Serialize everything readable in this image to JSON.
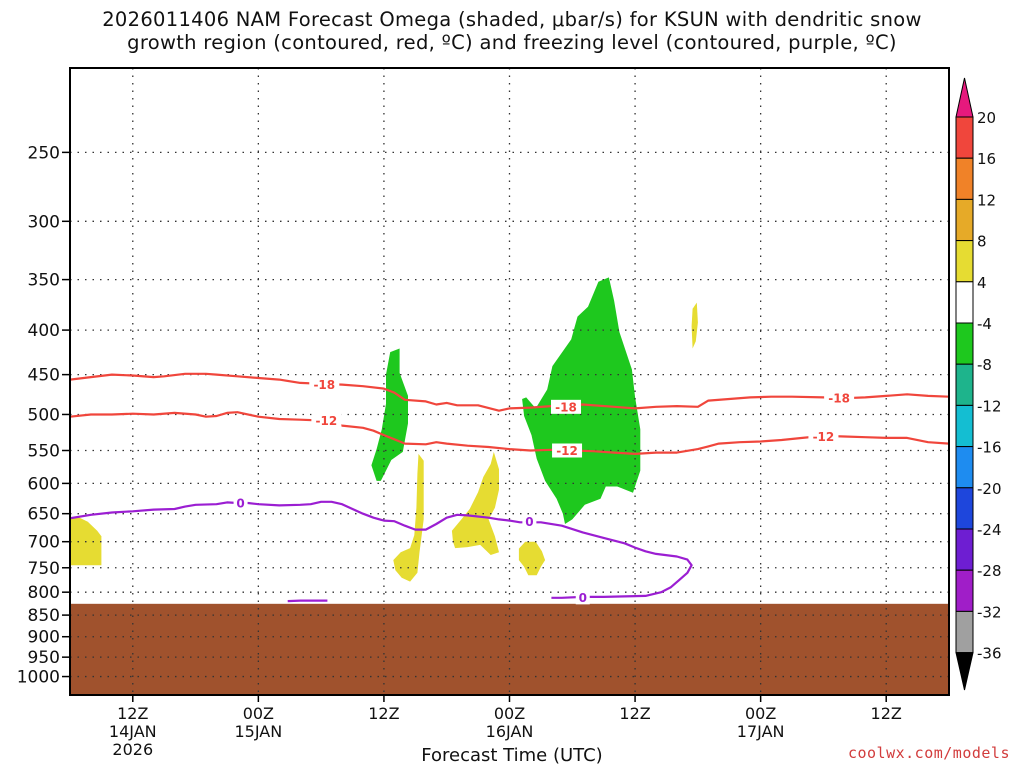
{
  "title": {
    "line1": "2026011406 NAM Forecast Omega (shaded, μbar/s) for KSUN with dendritic snow",
    "line2": "growth region (contoured, red, ºC) and freezing level (contoured, purple, ºC)"
  },
  "credit": "coolwx.com/models",
  "chart_data": {
    "type": "heatmap",
    "title": "2026011406 NAM Forecast Omega (shaded, μbar/s) for KSUN with dendritic snow growth region (contoured, red, ºC) and freezing level (contoured, purple, ºC)",
    "xlabel": "Forecast Time (UTC)",
    "ylabel": "",
    "x_range_hours": [
      6,
      90
    ],
    "y_range_mb": [
      200,
      1050
    ],
    "y_scale": "log",
    "y_ticks": [
      "250",
      "300",
      "350",
      "400",
      "450",
      "500",
      "550",
      "600",
      "650",
      "700",
      "750",
      "800",
      "850",
      "900",
      "950",
      "1000"
    ],
    "x_ticks": [
      {
        "hour": 12,
        "line1": "12Z",
        "line2": "14JAN",
        "line3": "2026"
      },
      {
        "hour": 24,
        "line1": "00Z",
        "line2": "15JAN",
        "line3": ""
      },
      {
        "hour": 36,
        "line1": "12Z",
        "line2": "",
        "line3": ""
      },
      {
        "hour": 48,
        "line1": "00Z",
        "line2": "16JAN",
        "line3": ""
      },
      {
        "hour": 60,
        "line1": "12Z",
        "line2": "",
        "line3": ""
      },
      {
        "hour": 72,
        "line1": "00Z",
        "line2": "17JAN",
        "line3": ""
      },
      {
        "hour": 84,
        "line1": "12Z",
        "line2": "",
        "line3": ""
      }
    ],
    "grid": true,
    "ground_level_mb": 825,
    "colorbar": {
      "labels": [
        "20",
        "16",
        "12",
        "8",
        "4",
        "-4",
        "-8",
        "-12",
        "-16",
        "-20",
        "-24",
        "-28",
        "-32",
        "-36"
      ],
      "colors": [
        "#f0463c",
        "#f08228",
        "#e6aa28",
        "#e6dc32",
        "#ffffff",
        "#1ec81e",
        "#1eb48c",
        "#14bed2",
        "#1e8cf0",
        "#1e46dc",
        "#6e1ed2",
        "#a01ec8",
        "#a0a0a0"
      ],
      "top_arrow_color": "#e6197d",
      "bottom_arrow_color": "#000000"
    },
    "omega_regions": [
      {
        "level": "-4 to -8",
        "color": "#1ec81e",
        "points": [
          [
            35.3,
            596
          ],
          [
            34.8,
            572
          ],
          [
            35.3,
            548
          ],
          [
            35.8,
            520
          ],
          [
            36.2,
            486
          ],
          [
            36.2,
            450
          ],
          [
            36.6,
            424
          ],
          [
            37.5,
            420
          ],
          [
            37.5,
            448
          ],
          [
            38.3,
            476
          ],
          [
            38.3,
            512
          ],
          [
            37.8,
            552
          ],
          [
            36.7,
            564
          ],
          [
            36.2,
            580
          ],
          [
            35.7,
            596
          ]
        ]
      },
      {
        "level": "-4 to -8",
        "color": "#1ec81e",
        "points": [
          [
            49.2,
            480
          ],
          [
            49.6,
            478
          ],
          [
            50.5,
            492
          ],
          [
            51.6,
            468
          ],
          [
            52.1,
            440
          ],
          [
            53.9,
            410
          ],
          [
            54.5,
            386
          ],
          [
            55.5,
            376
          ],
          [
            56.5,
            352
          ],
          [
            57.5,
            348
          ],
          [
            58.0,
            370
          ],
          [
            58.5,
            402
          ],
          [
            59.7,
            444
          ],
          [
            60.0,
            478
          ],
          [
            60.5,
            520
          ],
          [
            60.5,
            580
          ],
          [
            59.8,
            615
          ],
          [
            58.3,
            605
          ],
          [
            57.2,
            605
          ],
          [
            56.7,
            625
          ],
          [
            55.2,
            635
          ],
          [
            54.0,
            660
          ],
          [
            53.3,
            668
          ],
          [
            53.1,
            650
          ],
          [
            52.5,
            625
          ],
          [
            51.4,
            596
          ],
          [
            50.6,
            562
          ],
          [
            50.1,
            528
          ],
          [
            49.4,
            502
          ]
        ]
      },
      {
        "level": "4 to 8",
        "color": "#e6dc32",
        "points": [
          [
            6,
            658
          ],
          [
            6.8,
            656
          ],
          [
            7.7,
            664
          ],
          [
            8.6,
            680
          ],
          [
            9,
            690
          ],
          [
            9,
            745
          ],
          [
            6,
            745
          ]
        ]
      },
      {
        "level": "4 to 8",
        "color": "#e6dc32",
        "points": [
          [
            36.9,
            735
          ],
          [
            37.6,
            720
          ],
          [
            38.5,
            712
          ],
          [
            38.9,
            688
          ],
          [
            39.1,
            640
          ],
          [
            39.2,
            585
          ],
          [
            39.3,
            555
          ],
          [
            39.8,
            565
          ],
          [
            39.8,
            600
          ],
          [
            39.8,
            660
          ],
          [
            39.4,
            720
          ],
          [
            39.2,
            760
          ],
          [
            38.5,
            778
          ],
          [
            37.7,
            770
          ],
          [
            37.1,
            755
          ]
        ]
      },
      {
        "level": "4 to 8",
        "color": "#e6dc32",
        "points": [
          [
            42.6,
            700
          ],
          [
            42.5,
            680
          ],
          [
            43.4,
            660
          ],
          [
            44.2,
            642
          ],
          [
            45.0,
            614
          ],
          [
            45.5,
            590
          ],
          [
            46.2,
            570
          ],
          [
            46.5,
            552
          ],
          [
            47.0,
            578
          ],
          [
            47.0,
            610
          ],
          [
            46.6,
            640
          ],
          [
            46.0,
            660
          ],
          [
            46.6,
            690
          ],
          [
            47.0,
            720
          ],
          [
            46.2,
            725
          ],
          [
            45.2,
            706
          ],
          [
            44.0,
            710
          ],
          [
            42.8,
            712
          ]
        ]
      },
      {
        "level": "4 to 8",
        "color": "#e6dc32",
        "points": [
          [
            48.9,
            735
          ],
          [
            48.9,
            713
          ],
          [
            49.5,
            700
          ],
          [
            50.5,
            700
          ],
          [
            51.1,
            718
          ],
          [
            51.4,
            735
          ],
          [
            51.0,
            748
          ],
          [
            50.6,
            765
          ],
          [
            49.8,
            765
          ],
          [
            49.4,
            748
          ]
        ]
      },
      {
        "level": "4 to 8",
        "color": "#e6dc32",
        "points": [
          [
            65.5,
            420
          ],
          [
            65.4,
            396
          ],
          [
            65.5,
            378
          ],
          [
            65.9,
            372
          ],
          [
            66.0,
            392
          ],
          [
            65.8,
            412
          ]
        ]
      }
    ],
    "contours": [
      {
        "label": "-18",
        "color": "#f0463c",
        "points": [
          [
            6,
            456
          ],
          [
            8,
            453
          ],
          [
            10,
            450
          ],
          [
            12,
            451
          ],
          [
            14,
            453
          ],
          [
            15,
            452
          ],
          [
            17,
            449
          ],
          [
            19,
            449
          ],
          [
            20,
            450
          ],
          [
            22,
            452
          ],
          [
            24,
            454
          ],
          [
            26,
            456
          ],
          [
            28,
            460
          ],
          [
            30,
            461
          ],
          [
            32,
            462
          ],
          [
            34,
            464
          ],
          [
            36,
            467
          ],
          [
            37,
            472
          ],
          [
            38,
            481
          ],
          [
            40,
            483
          ],
          [
            41,
            487
          ],
          [
            42,
            485
          ],
          [
            43,
            488
          ],
          [
            45,
            488
          ],
          [
            47,
            495
          ],
          [
            48,
            492
          ],
          [
            50,
            491
          ],
          [
            52,
            489
          ],
          [
            55,
            487
          ],
          [
            58,
            490
          ],
          [
            60,
            492
          ],
          [
            62,
            490
          ],
          [
            64,
            489
          ],
          [
            66,
            490
          ],
          [
            67,
            482
          ],
          [
            69,
            480
          ],
          [
            71,
            478
          ],
          [
            73,
            477
          ],
          [
            75,
            477
          ],
          [
            78,
            478
          ],
          [
            80,
            479
          ],
          [
            82,
            478
          ],
          [
            84,
            476
          ],
          [
            86,
            474
          ],
          [
            88,
            476
          ],
          [
            90,
            477
          ]
        ],
        "label_positions": [
          [
            30.3,
            462
          ],
          [
            53.4,
            490
          ],
          [
            79.5,
            479
          ]
        ]
      },
      {
        "label": "-12",
        "color": "#f0463c",
        "points": [
          [
            6,
            503
          ],
          [
            8,
            500
          ],
          [
            10,
            500
          ],
          [
            12,
            499
          ],
          [
            14,
            500
          ],
          [
            16,
            498
          ],
          [
            18,
            500
          ],
          [
            19,
            503
          ],
          [
            20,
            502
          ],
          [
            21,
            498
          ],
          [
            22,
            497
          ],
          [
            24,
            503
          ],
          [
            26,
            506
          ],
          [
            28,
            507
          ],
          [
            30,
            508
          ],
          [
            32,
            515
          ],
          [
            34,
            518
          ],
          [
            35,
            522
          ],
          [
            36,
            528
          ],
          [
            37,
            534
          ],
          [
            38,
            540
          ],
          [
            40,
            541
          ],
          [
            41,
            538
          ],
          [
            42,
            540
          ],
          [
            44,
            543
          ],
          [
            46,
            545
          ],
          [
            48,
            548
          ],
          [
            50,
            550
          ],
          [
            52,
            549
          ],
          [
            54,
            550
          ],
          [
            56,
            551
          ],
          [
            58,
            553
          ],
          [
            60,
            555
          ],
          [
            62,
            553
          ],
          [
            64,
            553
          ],
          [
            66,
            548
          ],
          [
            67,
            544
          ],
          [
            68,
            540
          ],
          [
            70,
            538
          ],
          [
            72,
            537
          ],
          [
            74,
            535
          ],
          [
            76,
            532
          ],
          [
            78,
            529
          ],
          [
            80,
            530
          ],
          [
            82,
            531
          ],
          [
            84,
            532
          ],
          [
            86,
            532
          ],
          [
            88,
            538
          ],
          [
            90,
            540
          ]
        ],
        "label_positions": [
          [
            30.5,
            508
          ],
          [
            53.5,
            550
          ],
          [
            78.0,
            530
          ]
        ]
      },
      {
        "label": "0",
        "color": "#9b1ed2",
        "points": [
          [
            6,
            658
          ],
          [
            8,
            652
          ],
          [
            10,
            648
          ],
          [
            12,
            646
          ],
          [
            14,
            643
          ],
          [
            16,
            642
          ],
          [
            17,
            638
          ],
          [
            18,
            635
          ],
          [
            20,
            634
          ],
          [
            21,
            631
          ],
          [
            22,
            632
          ],
          [
            23,
            632
          ],
          [
            24,
            634
          ],
          [
            26,
            636
          ],
          [
            28,
            635
          ],
          [
            29,
            634
          ],
          [
            30,
            630
          ],
          [
            31,
            630
          ],
          [
            32,
            634
          ],
          [
            33,
            642
          ],
          [
            34,
            650
          ],
          [
            35,
            657
          ],
          [
            36,
            662
          ],
          [
            37,
            663
          ],
          [
            38,
            671
          ],
          [
            39,
            678
          ],
          [
            40,
            678
          ],
          [
            41,
            668
          ],
          [
            42,
            657
          ],
          [
            43,
            652
          ],
          [
            44,
            653
          ],
          [
            46,
            657
          ],
          [
            47,
            660
          ],
          [
            48,
            662
          ],
          [
            49,
            665
          ],
          [
            51,
            665
          ],
          [
            53,
            671
          ],
          [
            55,
            683
          ],
          [
            57,
            693
          ],
          [
            59,
            703
          ],
          [
            60,
            711
          ],
          [
            61,
            718
          ],
          [
            62,
            723
          ],
          [
            64,
            728
          ],
          [
            65,
            734
          ],
          [
            65.4,
            745
          ],
          [
            65.0,
            760
          ],
          [
            64.2,
            775
          ],
          [
            63.4,
            790
          ],
          [
            62.5,
            800
          ],
          [
            61.0,
            808
          ],
          [
            59.0,
            809
          ],
          [
            57.0,
            810
          ],
          [
            55.0,
            810
          ],
          [
            53.0,
            812
          ],
          [
            52.0,
            812
          ]
        ],
        "label_positions": [
          [
            22.3,
            632
          ],
          [
            49.9,
            664
          ],
          [
            55.0,
            811
          ]
        ]
      },
      {
        "label": "",
        "color": "#9b1ed2",
        "points": [
          [
            26.8,
            819
          ],
          [
            28.0,
            818
          ],
          [
            29.5,
            818
          ],
          [
            30.6,
            818
          ]
        ],
        "label_positions": []
      }
    ]
  }
}
